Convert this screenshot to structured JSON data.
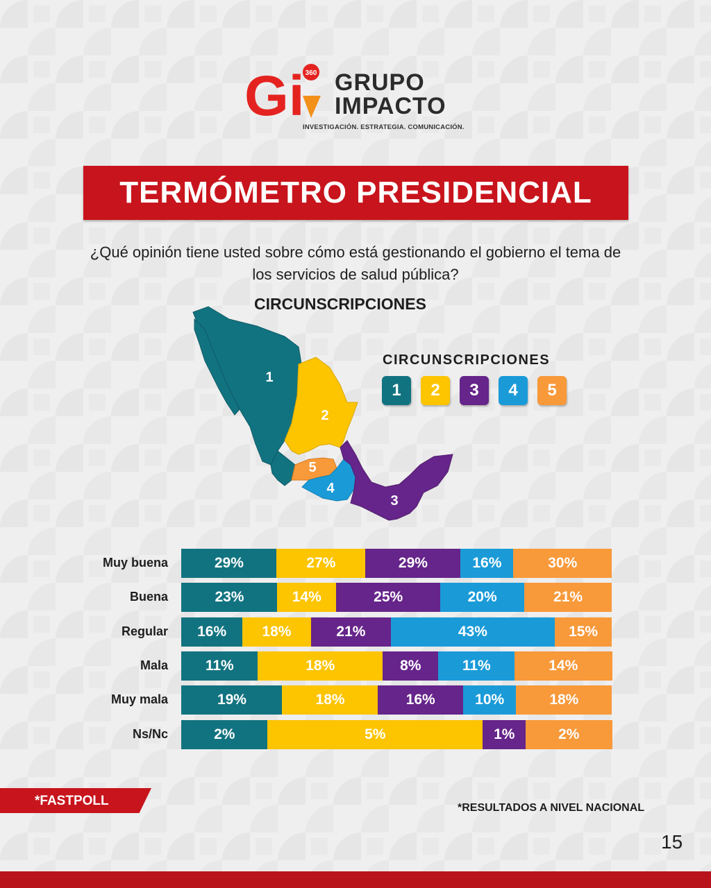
{
  "brand": {
    "line1": "GRUPO",
    "line2": "IMPACTO",
    "tagline": "INVESTIGACIÓN. ESTRATEGIA. COMUNICACIÓN.",
    "badge": "360",
    "mark": "Gi",
    "colors": {
      "red": "#e42320",
      "orange": "#f39019",
      "dark": "#2b2b2b"
    }
  },
  "title": "TERMÓMETRO PRESIDENCIAL",
  "question_line1": "¿Qué opinión tiene usted sobre cómo está gestionando el gobierno el tema de",
  "question_line2": "los servicios de salud pública?",
  "map": {
    "title": "CIRCUNSCRIPCIONES",
    "labels": [
      "1",
      "2",
      "3",
      "4",
      "5"
    ]
  },
  "legend": {
    "title": "CIRCUNSCRIPCIONES",
    "items": [
      {
        "label": "1",
        "color": "#127380"
      },
      {
        "label": "2",
        "color": "#fdc400"
      },
      {
        "label": "3",
        "color": "#66258a"
      },
      {
        "label": "4",
        "color": "#1a9bd8"
      },
      {
        "label": "5",
        "color": "#f8993a"
      }
    ]
  },
  "chart_data": {
    "type": "bar",
    "orientation": "horizontal",
    "stacked": true,
    "categories": [
      "Muy buena",
      "Buena",
      "Regular",
      "Mala",
      "Muy mala",
      "Ns/Nc"
    ],
    "series": [
      {
        "name": "1",
        "color": "#127380",
        "values": [
          29,
          23,
          16,
          11,
          19,
          2
        ]
      },
      {
        "name": "2",
        "color": "#fdc400",
        "values": [
          27,
          14,
          18,
          18,
          18,
          5
        ]
      },
      {
        "name": "3",
        "color": "#66258a",
        "values": [
          29,
          25,
          21,
          8,
          16,
          1
        ]
      },
      {
        "name": "4",
        "color": "#1a9bd8",
        "values": [
          16,
          20,
          43,
          11,
          10,
          null
        ]
      },
      {
        "name": "5",
        "color": "#f8993a",
        "values": [
          30,
          21,
          15,
          14,
          18,
          2
        ]
      }
    ],
    "value_suffix": "%"
  },
  "footer": {
    "fastpoll": "*FASTPOLL",
    "note": "*RESULTADOS A NIVEL NACIONAL",
    "page": "15"
  }
}
